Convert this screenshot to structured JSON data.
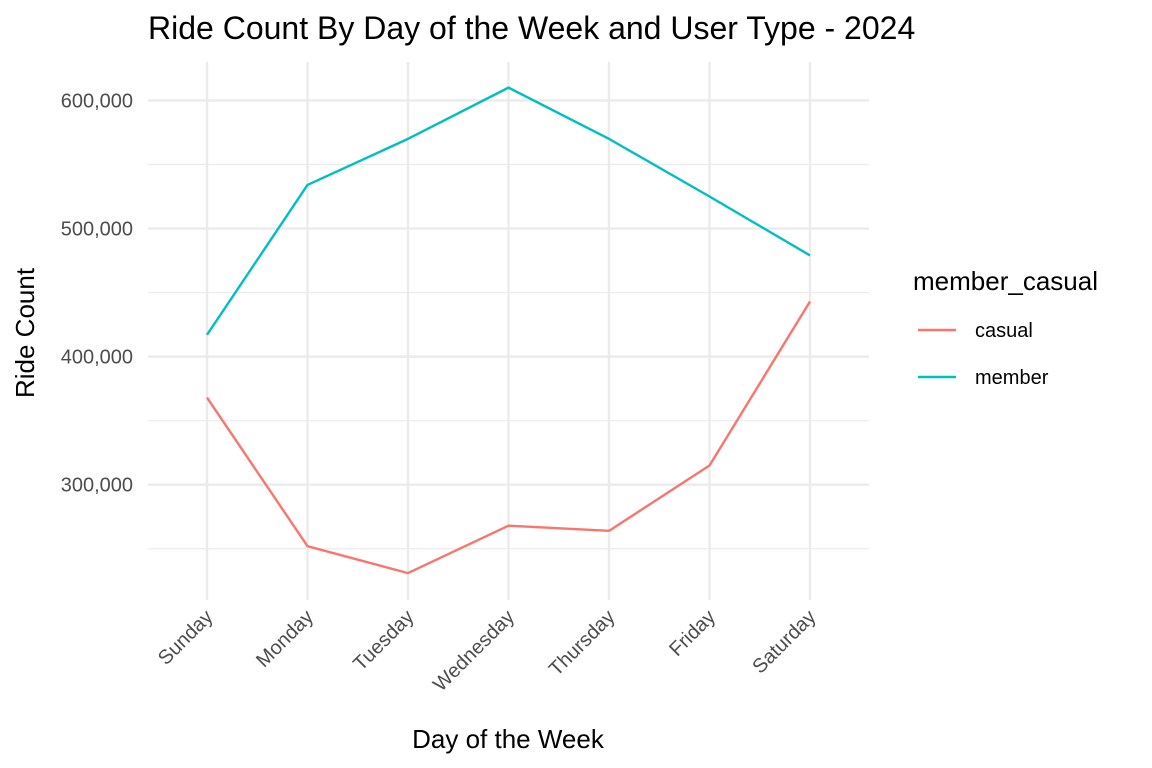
{
  "chart_data": {
    "type": "line",
    "title": "Ride Count By Day of the Week and User Type - 2024",
    "xlabel": "Day of the Week",
    "ylabel": "Ride Count",
    "categories": [
      "Sunday",
      "Monday",
      "Tuesday",
      "Wednesday",
      "Thursday",
      "Friday",
      "Saturday"
    ],
    "ylim": [
      210000,
      630000
    ],
    "yticks": [
      300000,
      400000,
      500000,
      600000
    ],
    "ytick_labels": [
      "300,000",
      "400,000",
      "500,000",
      "600,000"
    ],
    "yminor": [
      250000,
      350000,
      450000,
      550000
    ],
    "grid": true,
    "legend": {
      "title": "member_casual",
      "position": "right"
    },
    "series": [
      {
        "name": "casual",
        "color": "#F8766D",
        "values": [
          368000,
          252000,
          231000,
          268000,
          264000,
          315000,
          443000
        ]
      },
      {
        "name": "member",
        "color": "#00BFC4",
        "values": [
          417000,
          534000,
          570000,
          610000,
          570000,
          525000,
          479000
        ]
      }
    ]
  }
}
